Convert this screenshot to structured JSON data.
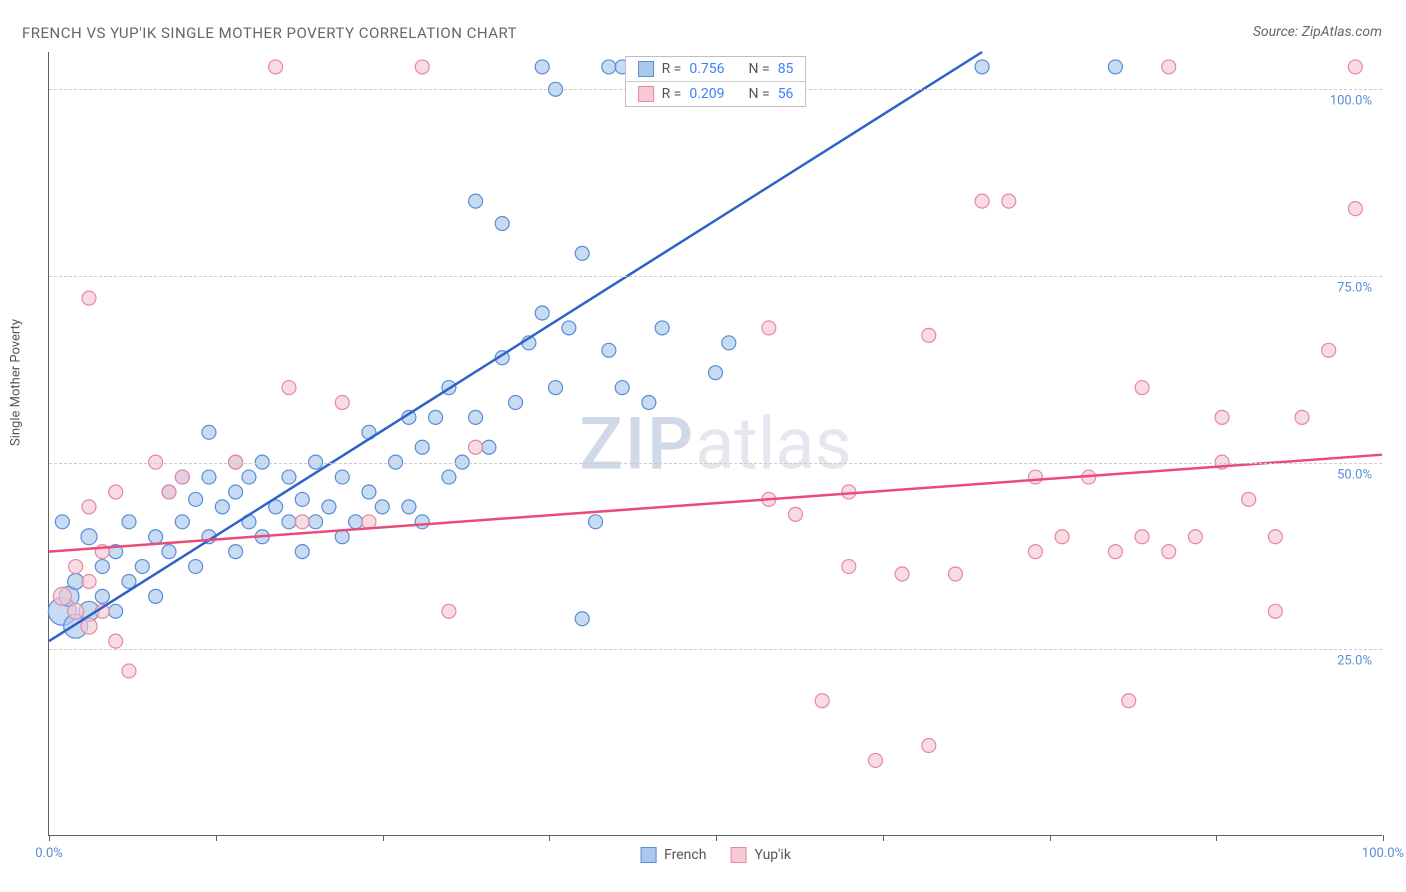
{
  "title": "FRENCH VS YUP'IK SINGLE MOTHER POVERTY CORRELATION CHART",
  "source": "Source: ZipAtlas.com",
  "watermark_zip": "ZIP",
  "watermark_atlas": "atlas",
  "y_axis_label": "Single Mother Poverty",
  "chart": {
    "type": "scatter",
    "xlim": [
      0,
      100
    ],
    "ylim": [
      0,
      105
    ],
    "y_gridlines": [
      25,
      50,
      75,
      100
    ],
    "y_tick_labels": [
      "25.0%",
      "50.0%",
      "75.0%",
      "100.0%"
    ],
    "y_tick_color": "#5b8dd6",
    "x_ticks": [
      0,
      12.5,
      25,
      37.5,
      50,
      62.5,
      75,
      87.5,
      100
    ],
    "x_tick_labels": {
      "0": "0.0%",
      "100": "100.0%"
    },
    "x_tick_color": "#5b8dd6",
    "grid_color": "#cccccc",
    "background_color": "#ffffff",
    "series": [
      {
        "name": "French",
        "r_value": "0.756",
        "n_value": "85",
        "marker_fill": "#a9c8ec",
        "marker_stroke": "#5b8dd6",
        "marker_opacity": 0.65,
        "line_color": "#2d63c8",
        "line_width": 2.5,
        "trend_line": {
          "x1": 0,
          "y1": 26,
          "x2": 70,
          "y2": 105
        },
        "points": [
          {
            "x": 1,
            "y": 30,
            "r": 14
          },
          {
            "x": 1.5,
            "y": 32,
            "r": 10
          },
          {
            "x": 2,
            "y": 28,
            "r": 12
          },
          {
            "x": 2,
            "y": 34,
            "r": 8
          },
          {
            "x": 3,
            "y": 30,
            "r": 10
          },
          {
            "x": 3,
            "y": 40,
            "r": 8
          },
          {
            "x": 1,
            "y": 42,
            "r": 7
          },
          {
            "x": 4,
            "y": 32,
            "r": 7
          },
          {
            "x": 4,
            "y": 36,
            "r": 7
          },
          {
            "x": 5,
            "y": 30,
            "r": 7
          },
          {
            "x": 5,
            "y": 38,
            "r": 7
          },
          {
            "x": 6,
            "y": 34,
            "r": 7
          },
          {
            "x": 6,
            "y": 42,
            "r": 7
          },
          {
            "x": 7,
            "y": 36,
            "r": 7
          },
          {
            "x": 8,
            "y": 32,
            "r": 7
          },
          {
            "x": 8,
            "y": 40,
            "r": 7
          },
          {
            "x": 9,
            "y": 38,
            "r": 7
          },
          {
            "x": 9,
            "y": 46,
            "r": 7
          },
          {
            "x": 10,
            "y": 42,
            "r": 7
          },
          {
            "x": 10,
            "y": 48,
            "r": 7
          },
          {
            "x": 11,
            "y": 36,
            "r": 7
          },
          {
            "x": 11,
            "y": 45,
            "r": 7
          },
          {
            "x": 12,
            "y": 40,
            "r": 7
          },
          {
            "x": 12,
            "y": 48,
            "r": 7
          },
          {
            "x": 12,
            "y": 54,
            "r": 7
          },
          {
            "x": 13,
            "y": 44,
            "r": 7
          },
          {
            "x": 14,
            "y": 38,
            "r": 7
          },
          {
            "x": 14,
            "y": 46,
            "r": 7
          },
          {
            "x": 14,
            "y": 50,
            "r": 7
          },
          {
            "x": 15,
            "y": 42,
            "r": 7
          },
          {
            "x": 15,
            "y": 48,
            "r": 7
          },
          {
            "x": 16,
            "y": 40,
            "r": 7
          },
          {
            "x": 16,
            "y": 50,
            "r": 7
          },
          {
            "x": 17,
            "y": 44,
            "r": 7
          },
          {
            "x": 18,
            "y": 42,
            "r": 7
          },
          {
            "x": 18,
            "y": 48,
            "r": 7
          },
          {
            "x": 19,
            "y": 38,
            "r": 7
          },
          {
            "x": 19,
            "y": 45,
            "r": 7
          },
          {
            "x": 20,
            "y": 42,
            "r": 7
          },
          {
            "x": 20,
            "y": 50,
            "r": 7
          },
          {
            "x": 21,
            "y": 44,
            "r": 7
          },
          {
            "x": 22,
            "y": 40,
            "r": 7
          },
          {
            "x": 22,
            "y": 48,
            "r": 7
          },
          {
            "x": 23,
            "y": 42,
            "r": 7
          },
          {
            "x": 24,
            "y": 46,
            "r": 7
          },
          {
            "x": 24,
            "y": 54,
            "r": 7
          },
          {
            "x": 25,
            "y": 44,
            "r": 7
          },
          {
            "x": 26,
            "y": 50,
            "r": 7
          },
          {
            "x": 27,
            "y": 44,
            "r": 7
          },
          {
            "x": 27,
            "y": 56,
            "r": 7
          },
          {
            "x": 28,
            "y": 42,
            "r": 7
          },
          {
            "x": 28,
            "y": 52,
            "r": 7
          },
          {
            "x": 29,
            "y": 56,
            "r": 7
          },
          {
            "x": 30,
            "y": 48,
            "r": 7
          },
          {
            "x": 30,
            "y": 60,
            "r": 7
          },
          {
            "x": 31,
            "y": 50,
            "r": 7
          },
          {
            "x": 32,
            "y": 56,
            "r": 7
          },
          {
            "x": 32,
            "y": 85,
            "r": 7
          },
          {
            "x": 33,
            "y": 52,
            "r": 7
          },
          {
            "x": 34,
            "y": 64,
            "r": 7
          },
          {
            "x": 34,
            "y": 82,
            "r": 7
          },
          {
            "x": 35,
            "y": 58,
            "r": 7
          },
          {
            "x": 36,
            "y": 66,
            "r": 7
          },
          {
            "x": 37,
            "y": 70,
            "r": 7
          },
          {
            "x": 37,
            "y": 103,
            "r": 7
          },
          {
            "x": 38,
            "y": 60,
            "r": 7
          },
          {
            "x": 38,
            "y": 100,
            "r": 7
          },
          {
            "x": 39,
            "y": 68,
            "r": 7
          },
          {
            "x": 40,
            "y": 29,
            "r": 7
          },
          {
            "x": 40,
            "y": 78,
            "r": 7
          },
          {
            "x": 41,
            "y": 42,
            "r": 7
          },
          {
            "x": 42,
            "y": 65,
            "r": 7
          },
          {
            "x": 42,
            "y": 103,
            "r": 7
          },
          {
            "x": 43,
            "y": 60,
            "r": 7
          },
          {
            "x": 43,
            "y": 103,
            "r": 7
          },
          {
            "x": 44,
            "y": 103,
            "r": 7
          },
          {
            "x": 45,
            "y": 58,
            "r": 7
          },
          {
            "x": 45,
            "y": 103,
            "r": 7
          },
          {
            "x": 46,
            "y": 68,
            "r": 7
          },
          {
            "x": 46,
            "y": 103,
            "r": 7
          },
          {
            "x": 47,
            "y": 103,
            "r": 7
          },
          {
            "x": 50,
            "y": 62,
            "r": 7
          },
          {
            "x": 51,
            "y": 66,
            "r": 7
          },
          {
            "x": 70,
            "y": 103,
            "r": 7
          },
          {
            "x": 80,
            "y": 103,
            "r": 7
          }
        ]
      },
      {
        "name": "Yup'ik",
        "r_value": "0.209",
        "n_value": "56",
        "marker_fill": "#f6c9d4",
        "marker_stroke": "#e688a0",
        "marker_opacity": 0.65,
        "line_color": "#e94b7a",
        "line_width": 2.5,
        "trend_line": {
          "x1": 0,
          "y1": 38,
          "x2": 100,
          "y2": 51
        },
        "points": [
          {
            "x": 1,
            "y": 32,
            "r": 9
          },
          {
            "x": 2,
            "y": 30,
            "r": 8
          },
          {
            "x": 2,
            "y": 36,
            "r": 7
          },
          {
            "x": 3,
            "y": 28,
            "r": 8
          },
          {
            "x": 3,
            "y": 34,
            "r": 7
          },
          {
            "x": 3,
            "y": 44,
            "r": 7
          },
          {
            "x": 3,
            "y": 72,
            "r": 7
          },
          {
            "x": 4,
            "y": 30,
            "r": 7
          },
          {
            "x": 4,
            "y": 38,
            "r": 7
          },
          {
            "x": 5,
            "y": 26,
            "r": 7
          },
          {
            "x": 5,
            "y": 46,
            "r": 7
          },
          {
            "x": 6,
            "y": 22,
            "r": 7
          },
          {
            "x": 8,
            "y": 50,
            "r": 7
          },
          {
            "x": 9,
            "y": 46,
            "r": 7
          },
          {
            "x": 10,
            "y": 48,
            "r": 7
          },
          {
            "x": 14,
            "y": 50,
            "r": 7
          },
          {
            "x": 17,
            "y": 103,
            "r": 7
          },
          {
            "x": 18,
            "y": 60,
            "r": 7
          },
          {
            "x": 19,
            "y": 42,
            "r": 7
          },
          {
            "x": 22,
            "y": 58,
            "r": 7
          },
          {
            "x": 24,
            "y": 42,
            "r": 7
          },
          {
            "x": 28,
            "y": 103,
            "r": 7
          },
          {
            "x": 30,
            "y": 30,
            "r": 7
          },
          {
            "x": 32,
            "y": 52,
            "r": 7
          },
          {
            "x": 54,
            "y": 45,
            "r": 7
          },
          {
            "x": 54,
            "y": 68,
            "r": 7
          },
          {
            "x": 56,
            "y": 43,
            "r": 7
          },
          {
            "x": 58,
            "y": 18,
            "r": 7
          },
          {
            "x": 60,
            "y": 36,
            "r": 7
          },
          {
            "x": 60,
            "y": 46,
            "r": 7
          },
          {
            "x": 62,
            "y": 10,
            "r": 7
          },
          {
            "x": 64,
            "y": 35,
            "r": 7
          },
          {
            "x": 66,
            "y": 12,
            "r": 7
          },
          {
            "x": 66,
            "y": 67,
            "r": 7
          },
          {
            "x": 68,
            "y": 35,
            "r": 7
          },
          {
            "x": 70,
            "y": 85,
            "r": 7
          },
          {
            "x": 72,
            "y": 85,
            "r": 7
          },
          {
            "x": 74,
            "y": 38,
            "r": 7
          },
          {
            "x": 74,
            "y": 48,
            "r": 7
          },
          {
            "x": 76,
            "y": 40,
            "r": 7
          },
          {
            "x": 78,
            "y": 48,
            "r": 7
          },
          {
            "x": 80,
            "y": 38,
            "r": 7
          },
          {
            "x": 81,
            "y": 18,
            "r": 7
          },
          {
            "x": 82,
            "y": 40,
            "r": 7
          },
          {
            "x": 82,
            "y": 60,
            "r": 7
          },
          {
            "x": 84,
            "y": 38,
            "r": 7
          },
          {
            "x": 84,
            "y": 103,
            "r": 7
          },
          {
            "x": 86,
            "y": 40,
            "r": 7
          },
          {
            "x": 88,
            "y": 50,
            "r": 7
          },
          {
            "x": 88,
            "y": 56,
            "r": 7
          },
          {
            "x": 90,
            "y": 45,
            "r": 7
          },
          {
            "x": 92,
            "y": 30,
            "r": 7
          },
          {
            "x": 92,
            "y": 40,
            "r": 7
          },
          {
            "x": 94,
            "y": 56,
            "r": 7
          },
          {
            "x": 96,
            "y": 65,
            "r": 7
          },
          {
            "x": 98,
            "y": 84,
            "r": 7
          },
          {
            "x": 98,
            "y": 103,
            "r": 7
          }
        ]
      }
    ]
  },
  "legend_top": {
    "r_label": "R =",
    "n_label": "N ="
  },
  "legend_bottom": [
    {
      "label": "French",
      "fill": "#a9c8ec",
      "stroke": "#5b8dd6"
    },
    {
      "label": "Yup'ik",
      "fill": "#f6c9d4",
      "stroke": "#e688a0"
    }
  ]
}
